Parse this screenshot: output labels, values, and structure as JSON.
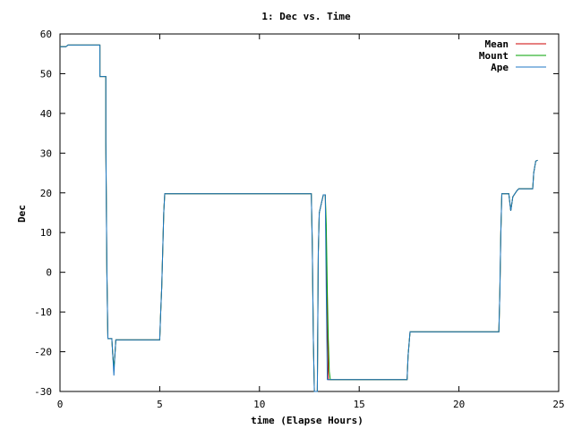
{
  "chart_data": {
    "type": "line",
    "title": "1: Dec vs. Time",
    "xlabel": "time (Elapse Hours)",
    "ylabel": "Dec",
    "xlim": [
      0,
      25
    ],
    "ylim": [
      -30,
      60
    ],
    "x_ticks": [
      0,
      5,
      10,
      15,
      20,
      25
    ],
    "y_ticks": [
      -30,
      -20,
      -10,
      0,
      10,
      20,
      30,
      40,
      50,
      60
    ],
    "grid": false,
    "legend_position": "top-right",
    "series": [
      {
        "name": "Mean",
        "color": "#cc0000",
        "points": [
          [
            0,
            56.8
          ],
          [
            0.3,
            56.8
          ],
          [
            0.4,
            57.2
          ],
          [
            2.0,
            57.2
          ],
          [
            2.0,
            49.3
          ],
          [
            2.3,
            49.3
          ],
          [
            2.3,
            33
          ],
          [
            2.35,
            0
          ],
          [
            2.4,
            -16.7
          ],
          [
            2.6,
            -16.7
          ],
          [
            2.65,
            -21
          ],
          [
            2.7,
            -24
          ],
          [
            2.75,
            -21
          ],
          [
            2.8,
            -17
          ],
          [
            5.0,
            -17
          ],
          [
            5.05,
            -10
          ],
          [
            5.1,
            -4
          ],
          [
            5.15,
            5
          ],
          [
            5.2,
            15
          ],
          [
            5.25,
            19.8
          ],
          [
            12.6,
            19.8
          ],
          [
            12.65,
            7
          ],
          [
            12.7,
            -17
          ],
          [
            12.75,
            -30
          ],
          [
            12.9,
            -30
          ],
          [
            12.95,
            5
          ],
          [
            13.0,
            15
          ],
          [
            13.2,
            19.5
          ],
          [
            13.3,
            19.5
          ],
          [
            13.35,
            5
          ],
          [
            13.45,
            -27
          ],
          [
            17.4,
            -27
          ],
          [
            17.45,
            -21
          ],
          [
            17.55,
            -15
          ],
          [
            22.0,
            -15
          ],
          [
            22.05,
            -5
          ],
          [
            22.1,
            10
          ],
          [
            22.15,
            19.8
          ],
          [
            22.5,
            19.8
          ],
          [
            22.6,
            15.5
          ],
          [
            22.7,
            19
          ],
          [
            22.9,
            20.5
          ],
          [
            23.0,
            21
          ],
          [
            23.7,
            21
          ],
          [
            23.75,
            25
          ],
          [
            23.85,
            28
          ],
          [
            23.95,
            28.2
          ]
        ]
      },
      {
        "name": "Mount",
        "color": "#00a000",
        "points": [
          [
            0,
            56.8
          ],
          [
            0.3,
            56.8
          ],
          [
            0.4,
            57.2
          ],
          [
            2.0,
            57.2
          ],
          [
            2.0,
            49.3
          ],
          [
            2.3,
            49.3
          ],
          [
            2.3,
            33
          ],
          [
            2.35,
            0
          ],
          [
            2.4,
            -16.7
          ],
          [
            2.6,
            -16.7
          ],
          [
            2.65,
            -21
          ],
          [
            2.7,
            -24
          ],
          [
            2.75,
            -21
          ],
          [
            2.8,
            -17
          ],
          [
            5.0,
            -17
          ],
          [
            5.05,
            -10
          ],
          [
            5.1,
            -4
          ],
          [
            5.15,
            5
          ],
          [
            5.2,
            15
          ],
          [
            5.25,
            19.8
          ],
          [
            12.6,
            19.8
          ],
          [
            12.65,
            7
          ],
          [
            12.7,
            -17
          ],
          [
            12.75,
            -30
          ],
          [
            12.9,
            -30
          ],
          [
            12.95,
            5
          ],
          [
            13.0,
            15
          ],
          [
            13.2,
            19.5
          ],
          [
            13.3,
            19.5
          ],
          [
            13.35,
            12
          ],
          [
            13.4,
            -5
          ],
          [
            13.45,
            -17
          ],
          [
            13.5,
            -25
          ],
          [
            13.55,
            -27
          ],
          [
            17.4,
            -27
          ],
          [
            17.45,
            -21
          ],
          [
            17.55,
            -15
          ],
          [
            22.0,
            -15
          ],
          [
            22.05,
            -5
          ],
          [
            22.1,
            10
          ],
          [
            22.15,
            19.8
          ],
          [
            22.5,
            19.8
          ],
          [
            22.6,
            15.5
          ],
          [
            22.7,
            19
          ],
          [
            22.9,
            20.5
          ],
          [
            23.0,
            21
          ],
          [
            23.7,
            21
          ],
          [
            23.75,
            25
          ],
          [
            23.85,
            28
          ],
          [
            23.95,
            28.2
          ]
        ]
      },
      {
        "name": "Ape",
        "color": "#1f77c4",
        "points": [
          [
            0,
            56.8
          ],
          [
            0.3,
            56.8
          ],
          [
            0.4,
            57.2
          ],
          [
            2.0,
            57.2
          ],
          [
            2.0,
            49.3
          ],
          [
            2.3,
            49.3
          ],
          [
            2.3,
            33
          ],
          [
            2.35,
            0
          ],
          [
            2.4,
            -16.7
          ],
          [
            2.6,
            -16.7
          ],
          [
            2.65,
            -21
          ],
          [
            2.7,
            -26
          ],
          [
            2.75,
            -21
          ],
          [
            2.8,
            -17
          ],
          [
            5.0,
            -17
          ],
          [
            5.05,
            -10
          ],
          [
            5.1,
            -4
          ],
          [
            5.15,
            5
          ],
          [
            5.2,
            15
          ],
          [
            5.25,
            19.8
          ],
          [
            12.6,
            19.8
          ],
          [
            12.65,
            7
          ],
          [
            12.7,
            -17
          ],
          [
            12.75,
            -30
          ],
          [
            12.9,
            -30
          ],
          [
            12.95,
            5
          ],
          [
            13.0,
            15
          ],
          [
            13.2,
            19.5
          ],
          [
            13.3,
            19.5
          ],
          [
            13.35,
            -5
          ],
          [
            13.4,
            -27
          ],
          [
            17.4,
            -27
          ],
          [
            17.45,
            -21
          ],
          [
            17.55,
            -15
          ],
          [
            22.0,
            -15
          ],
          [
            22.05,
            -5
          ],
          [
            22.1,
            10
          ],
          [
            22.15,
            19.8
          ],
          [
            22.5,
            19.8
          ],
          [
            22.6,
            15.5
          ],
          [
            22.7,
            19
          ],
          [
            22.9,
            20.5
          ],
          [
            23.0,
            21
          ],
          [
            23.7,
            21
          ],
          [
            23.75,
            25
          ],
          [
            23.85,
            28
          ],
          [
            23.95,
            28.2
          ]
        ]
      }
    ]
  }
}
